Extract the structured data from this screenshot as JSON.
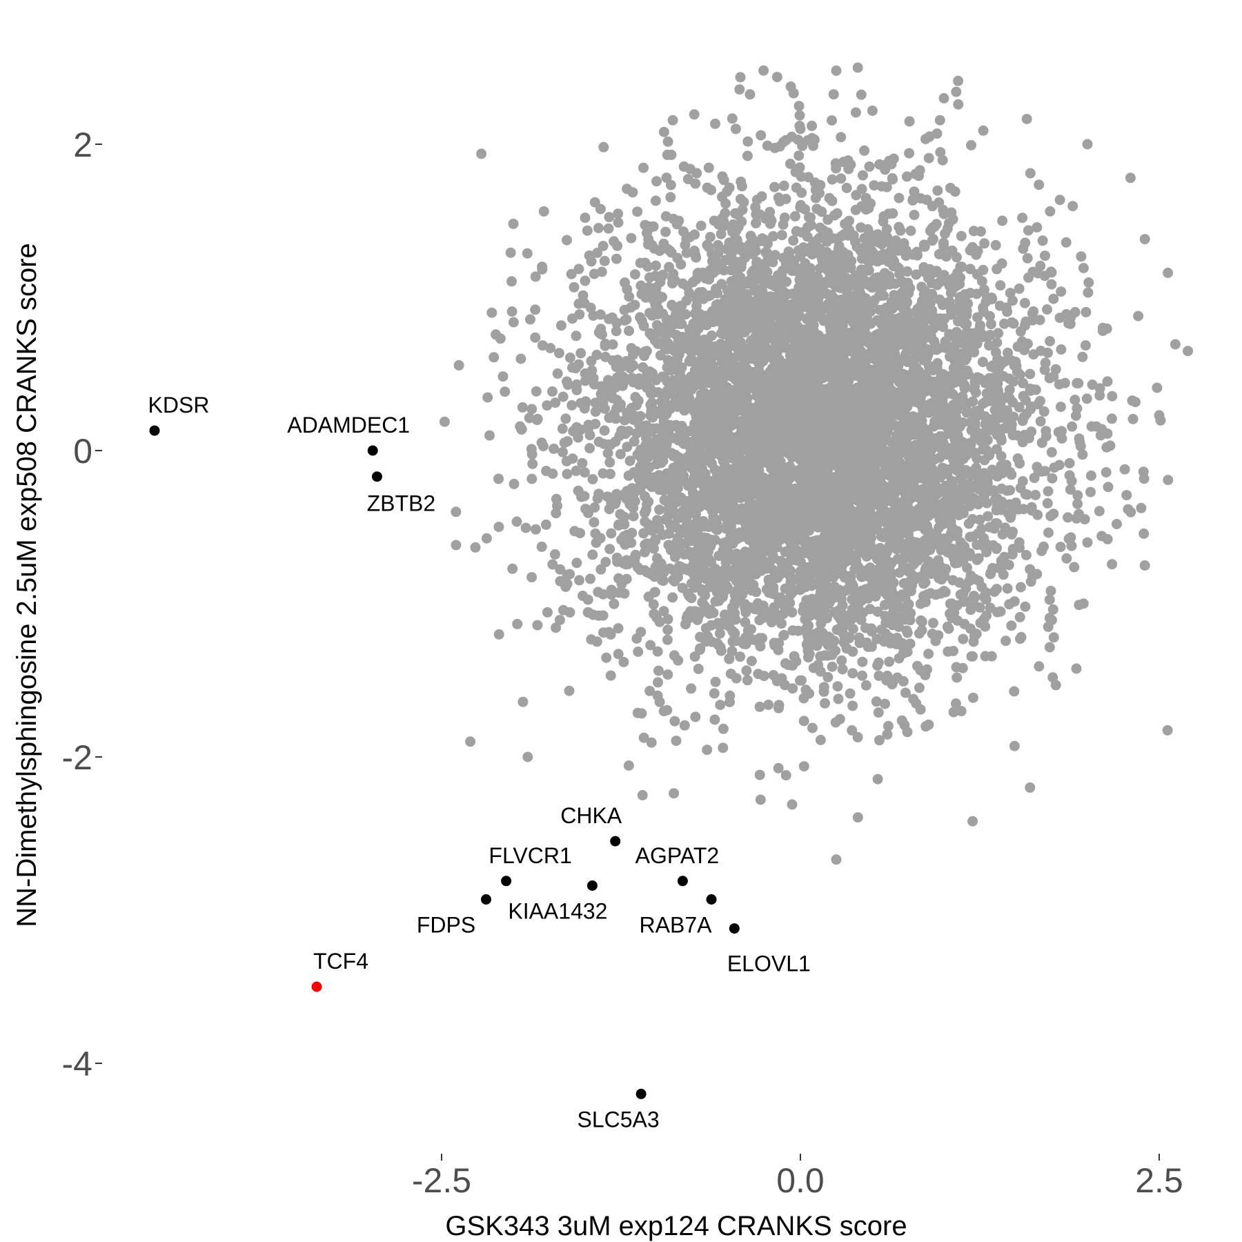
{
  "chart_data": {
    "type": "scatter",
    "title": "",
    "xlabel": "GSK343 3uM exp124 CRANKS score",
    "ylabel": "NN-Dimethylsphingosine 2.5uM exp508 CRANKS score",
    "xlim": [
      -4.55,
      2.75
    ],
    "ylim": [
      -4.55,
      2.55
    ],
    "xticks": [
      -2.5,
      0.0,
      2.5
    ],
    "xtick_labels": [
      "-2.5",
      "0.0",
      "2.5"
    ],
    "yticks": [
      2,
      0,
      -2,
      -4
    ],
    "ytick_labels": [
      "2",
      "0",
      "-2",
      "-4"
    ],
    "grid": false,
    "legend": "none",
    "background": {
      "description": "several thousand genes forming a roughly circular grey cloud centred near (0, 0.1)",
      "color": "#a0a0a0",
      "sample_points": [
        [
          0.25,
          2.48
        ],
        [
          0.4,
          2.5
        ],
        [
          1.0,
          2.3
        ],
        [
          1.1,
          2.26
        ],
        [
          -0.95,
          2.08
        ],
        [
          -0.45,
          2.1
        ],
        [
          0.0,
          2.1
        ],
        [
          0.08,
          2.12
        ],
        [
          0.9,
          2.05
        ],
        [
          2.0,
          2.0
        ],
        [
          2.3,
          1.78
        ],
        [
          2.4,
          1.38
        ],
        [
          -2.0,
          1.48
        ],
        [
          -1.5,
          1.52
        ],
        [
          -2.15,
          0.9
        ],
        [
          -1.8,
          1.2
        ],
        [
          1.3,
          1.0
        ],
        [
          2.7,
          0.65
        ],
        [
          2.5,
          0.23
        ],
        [
          -2.4,
          -0.4
        ],
        [
          -2.1,
          -1.2
        ],
        [
          -2.3,
          -1.9
        ],
        [
          -1.9,
          -2.0
        ],
        [
          -1.1,
          -2.25
        ],
        [
          -0.1,
          -2.12
        ],
        [
          0.25,
          -2.67
        ],
        [
          1.2,
          -2.42
        ],
        [
          1.6,
          -2.2
        ],
        [
          2.4,
          -0.75
        ],
        [
          2.0,
          -0.6
        ],
        [
          -0.6,
          1.5
        ],
        [
          0.5,
          1.3
        ],
        [
          -0.7,
          -1.3
        ],
        [
          0.6,
          -1.5
        ],
        [
          1.6,
          0.5
        ],
        [
          -1.5,
          0.3
        ]
      ]
    },
    "highlighted": [
      {
        "label": "KDSR",
        "x": -4.5,
        "y": 0.13,
        "color": "#000000"
      },
      {
        "label": "ADAMDEC1",
        "x": -2.98,
        "y": 0.0,
        "color": "#000000"
      },
      {
        "label": "ZBTB2",
        "x": -2.95,
        "y": -0.17,
        "color": "#000000"
      },
      {
        "label": "CHKA",
        "x": -1.29,
        "y": -2.55,
        "color": "#000000"
      },
      {
        "label": "FLVCR1",
        "x": -2.05,
        "y": -2.81,
        "color": "#000000"
      },
      {
        "label": "KIAA1432",
        "x": -1.45,
        "y": -2.84,
        "color": "#000000"
      },
      {
        "label": "AGPAT2",
        "x": -0.82,
        "y": -2.81,
        "color": "#000000"
      },
      {
        "label": "FDPS",
        "x": -2.19,
        "y": -2.93,
        "color": "#000000"
      },
      {
        "label": "RAB7A",
        "x": -0.62,
        "y": -2.93,
        "color": "#000000"
      },
      {
        "label": "ELOVL1",
        "x": -0.46,
        "y": -3.12,
        "color": "#000000"
      },
      {
        "label": "TCF4",
        "x": -3.37,
        "y": -3.5,
        "color": "#ff0000"
      },
      {
        "label": "SLC5A3",
        "x": -1.11,
        "y": -4.2,
        "color": "#000000"
      }
    ]
  }
}
